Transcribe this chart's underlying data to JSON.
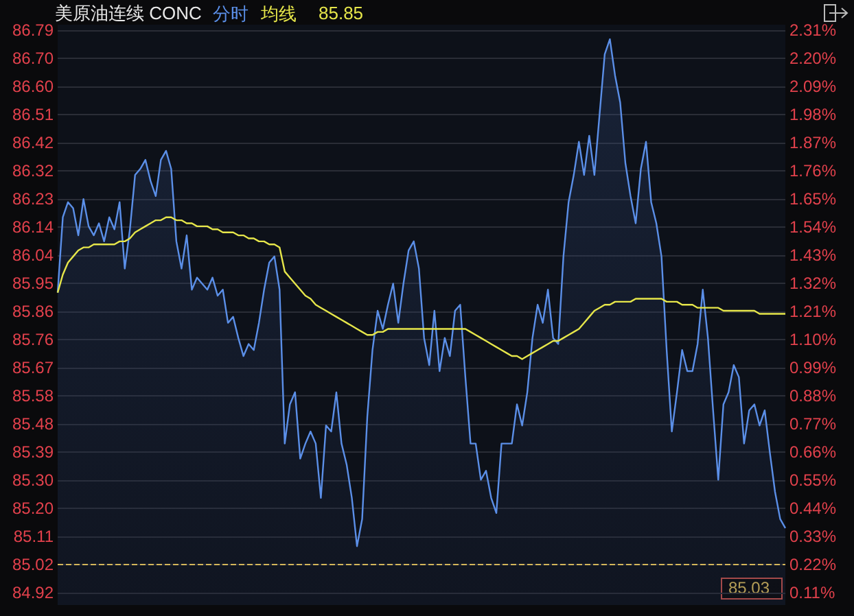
{
  "chart_data": {
    "type": "area",
    "title": "美原油连续 CONC",
    "annotations": [
      "85.85",
      "85.03"
    ],
    "categories": [
      null,
      null,
      null,
      null,
      null,
      null,
      null,
      null,
      null,
      null,
      null,
      null,
      null,
      null,
      null,
      null,
      null,
      null,
      null,
      null,
      null,
      null,
      null,
      null,
      null,
      null,
      null,
      null,
      null,
      null,
      null,
      null,
      null,
      null,
      null,
      null,
      null,
      null,
      null,
      null,
      null,
      null,
      null,
      null,
      null,
      null,
      null,
      null,
      null,
      null,
      null,
      null,
      null,
      null,
      null,
      null,
      null,
      null,
      null,
      null,
      null,
      null,
      null,
      null,
      null,
      null,
      null,
      null,
      null,
      null,
      null,
      null,
      null,
      null,
      null,
      null,
      null,
      null,
      null,
      null,
      null,
      null,
      null,
      null,
      null,
      null,
      null,
      null,
      null,
      null,
      null,
      null,
      null,
      null,
      null,
      null,
      null,
      null,
      null,
      null,
      null,
      null,
      null,
      null,
      null,
      null,
      null,
      null,
      null,
      null,
      null,
      null,
      null,
      null,
      null,
      null,
      null,
      null,
      null,
      null,
      null,
      null,
      null,
      null,
      null,
      null,
      null,
      null,
      null,
      null,
      null,
      null,
      null,
      null,
      null,
      null,
      null,
      null,
      null,
      null,
      null,
      null
    ],
    "series": [
      {
        "name": "分时",
        "color": "#5b8fe8",
        "values": [
          85.92,
          86.17,
          86.22,
          86.2,
          86.11,
          86.23,
          86.14,
          86.11,
          86.15,
          86.09,
          86.17,
          86.13,
          86.22,
          86.0,
          86.13,
          86.31,
          86.33,
          86.36,
          86.29,
          86.24,
          86.36,
          86.39,
          86.33,
          86.09,
          86.0,
          86.11,
          85.93,
          85.97,
          85.95,
          85.93,
          85.97,
          85.91,
          85.93,
          85.82,
          85.84,
          85.77,
          85.71,
          85.75,
          85.73,
          85.82,
          85.93,
          86.02,
          86.04,
          85.93,
          85.42,
          85.55,
          85.59,
          85.37,
          85.42,
          85.46,
          85.42,
          85.24,
          85.48,
          85.46,
          85.59,
          85.42,
          85.35,
          85.24,
          85.08,
          85.17,
          85.51,
          85.73,
          85.86,
          85.8,
          85.88,
          85.95,
          85.82,
          85.95,
          86.06,
          86.09,
          86.0,
          85.77,
          85.68,
          85.86,
          85.66,
          85.77,
          85.71,
          85.86,
          85.88,
          85.64,
          85.42,
          85.42,
          85.3,
          85.33,
          85.24,
          85.19,
          85.42,
          85.42,
          85.42,
          85.55,
          85.48,
          85.59,
          85.77,
          85.88,
          85.82,
          85.93,
          85.77,
          85.75,
          86.04,
          86.22,
          86.31,
          86.42,
          86.31,
          86.44,
          86.31,
          86.51,
          86.71,
          86.76,
          86.64,
          86.55,
          86.35,
          86.24,
          86.15,
          86.33,
          86.42,
          86.22,
          86.15,
          86.04,
          85.73,
          85.46,
          85.59,
          85.73,
          85.66,
          85.66,
          85.75,
          85.93,
          85.77,
          85.53,
          85.3,
          85.55,
          85.59,
          85.68,
          85.64,
          85.42,
          85.53,
          85.55,
          85.48,
          85.53,
          85.39,
          85.26,
          85.17,
          85.14
        ]
      },
      {
        "name": "均线",
        "type": "line",
        "color": "#e6e64a",
        "values": [
          85.92,
          85.98,
          86.02,
          86.04,
          86.06,
          86.07,
          86.07,
          86.08,
          86.08,
          86.08,
          86.08,
          86.08,
          86.09,
          86.09,
          86.1,
          86.12,
          86.13,
          86.14,
          86.15,
          86.16,
          86.16,
          86.17,
          86.17,
          86.16,
          86.16,
          86.15,
          86.15,
          86.14,
          86.14,
          86.14,
          86.13,
          86.13,
          86.12,
          86.12,
          86.12,
          86.11,
          86.11,
          86.1,
          86.1,
          86.09,
          86.09,
          86.08,
          86.08,
          86.07,
          85.99,
          85.97,
          85.95,
          85.93,
          85.91,
          85.9,
          85.88,
          85.87,
          85.86,
          85.85,
          85.84,
          85.83,
          85.82,
          85.81,
          85.8,
          85.79,
          85.78,
          85.78,
          85.79,
          85.79,
          85.8,
          85.8,
          85.8,
          85.8,
          85.8,
          85.8,
          85.8,
          85.8,
          85.8,
          85.8,
          85.8,
          85.8,
          85.8,
          85.8,
          85.8,
          85.8,
          85.79,
          85.78,
          85.77,
          85.76,
          85.75,
          85.74,
          85.73,
          85.72,
          85.71,
          85.71,
          85.7,
          85.71,
          85.72,
          85.73,
          85.74,
          85.75,
          85.76,
          85.76,
          85.77,
          85.78,
          85.79,
          85.8,
          85.82,
          85.84,
          85.86,
          85.87,
          85.88,
          85.88,
          85.89,
          85.89,
          85.89,
          85.89,
          85.9,
          85.9,
          85.9,
          85.9,
          85.9,
          85.9,
          85.89,
          85.89,
          85.89,
          85.88,
          85.88,
          85.88,
          85.87,
          85.87,
          85.87,
          85.87,
          85.87,
          85.86,
          85.86,
          85.86,
          85.86,
          85.86,
          85.86,
          85.86,
          85.85,
          85.85,
          85.85,
          85.85,
          85.85,
          85.85
        ]
      }
    ],
    "ylim": [
      84.885,
      86.808
    ],
    "yticks": [
      {
        "value": 84.925,
        "label": "84.92"
      },
      {
        "value": 85.018,
        "label": "85.02"
      },
      {
        "value": 85.112,
        "label": "85.11"
      },
      {
        "value": 85.205,
        "label": "85.20"
      },
      {
        "value": 85.298,
        "label": "85.30"
      },
      {
        "value": 85.391,
        "label": "85.39"
      },
      {
        "value": 85.485,
        "label": "85.48"
      },
      {
        "value": 85.578,
        "label": "85.58"
      },
      {
        "value": 85.671,
        "label": "85.67"
      },
      {
        "value": 85.764,
        "label": "85.76"
      },
      {
        "value": 85.858,
        "label": "85.86"
      },
      {
        "value": 85.951,
        "label": "85.95"
      },
      {
        "value": 86.044,
        "label": "86.04"
      },
      {
        "value": 86.137,
        "label": "86.14"
      },
      {
        "value": 86.23,
        "label": "86.23"
      },
      {
        "value": 86.324,
        "label": "86.32"
      },
      {
        "value": 86.417,
        "label": "86.42"
      },
      {
        "value": 86.51,
        "label": "86.51"
      },
      {
        "value": 86.604,
        "label": "86.60"
      },
      {
        "value": 86.697,
        "label": "86.70"
      },
      {
        "value": 86.79,
        "label": "86.79"
      }
    ],
    "y2lim": [
      0.063,
      2.331
    ],
    "y2ticks": [
      {
        "value": 0.11,
        "label": "0.11%"
      },
      {
        "value": 0.22,
        "label": "0.22%"
      },
      {
        "value": 0.33,
        "label": "0.33%"
      },
      {
        "value": 0.44,
        "label": "0.44%"
      },
      {
        "value": 0.55,
        "label": "0.55%"
      },
      {
        "value": 0.66,
        "label": "0.66%"
      },
      {
        "value": 0.77,
        "label": "0.77%"
      },
      {
        "value": 0.88,
        "label": "0.88%"
      },
      {
        "value": 0.99,
        "label": "0.99%"
      },
      {
        "value": 1.1,
        "label": "1.10%"
      },
      {
        "value": 1.21,
        "label": "1.21%"
      },
      {
        "value": 1.32,
        "label": "1.32%"
      },
      {
        "value": 1.43,
        "label": "1.43%"
      },
      {
        "value": 1.54,
        "label": "1.54%"
      },
      {
        "value": 1.65,
        "label": "1.65%"
      },
      {
        "value": 1.76,
        "label": "1.76%"
      },
      {
        "value": 1.87,
        "label": "1.87%"
      },
      {
        "value": 1.98,
        "label": "1.98%"
      },
      {
        "value": 2.09,
        "label": "2.09%"
      },
      {
        "value": 2.2,
        "label": "2.20%"
      },
      {
        "value": 2.31,
        "label": "2.31%"
      }
    ],
    "ref_lines": [
      {
        "axis": "y",
        "value": 85.02,
        "color": "#d4b65a",
        "line_style": "dashed"
      }
    ],
    "grid": "y",
    "legend": "top left",
    "marker": "none"
  }
}
